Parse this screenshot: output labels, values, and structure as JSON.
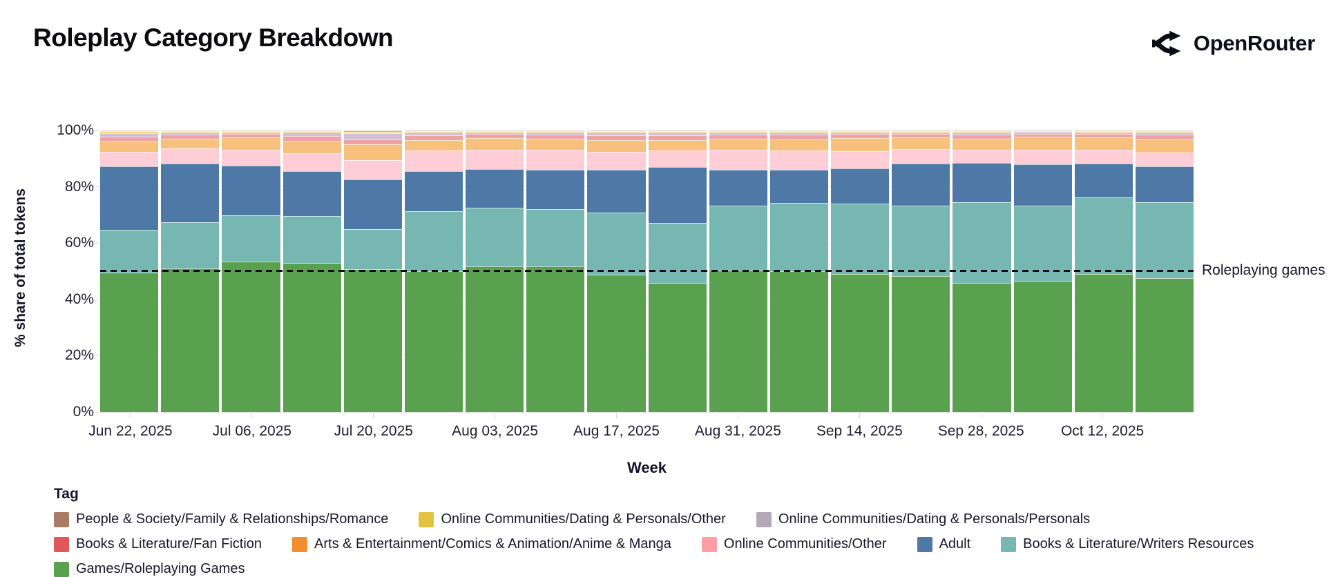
{
  "header": {
    "title": "Roleplay Category Breakdown",
    "brand": "OpenRouter"
  },
  "chart_data": {
    "type": "bar",
    "stacked": true,
    "orientation": "vertical",
    "title": "Roleplay Category Breakdown",
    "xlabel": "Week",
    "ylabel": "% share of total tokens",
    "ylim": [
      0,
      100
    ],
    "ytick_labels": [
      "0%",
      "20%",
      "40%",
      "60%",
      "80%",
      "100%"
    ],
    "xtick_labels": [
      "Jun 22, 2025",
      "Jul 06, 2025",
      "Jul 20, 2025",
      "Aug 03, 2025",
      "Aug 17, 2025",
      "Aug 31, 2025",
      "Sep 14, 2025",
      "Sep 28, 2025",
      "Oct 12, 2025"
    ],
    "xtick_every": 2,
    "categories": [
      "Jun 22, 2025",
      "Jun 29, 2025",
      "Jul 06, 2025",
      "Jul 13, 2025",
      "Jul 20, 2025",
      "Jul 27, 2025",
      "Aug 03, 2025",
      "Aug 10, 2025",
      "Aug 17, 2025",
      "Aug 24, 2025",
      "Aug 31, 2025",
      "Sep 07, 2025",
      "Sep 14, 2025",
      "Sep 21, 2025",
      "Sep 28, 2025",
      "Oct 05, 2025",
      "Oct 12, 2025",
      "Oct 19, 2025"
    ],
    "series": [
      {
        "name": "Games/Roleplaying Games",
        "band_color": "#59a14f",
        "values": [
          49.5,
          51.0,
          53.4,
          53.0,
          50.7,
          50.1,
          51.6,
          51.7,
          48.9,
          45.8,
          50.3,
          49.9,
          49.1,
          48.4,
          45.8,
          46.5,
          49.1,
          47.6
        ]
      },
      {
        "name": "Books & Literature/Writers Resources",
        "band_color": "#76b7b2",
        "values": [
          15.3,
          16.5,
          16.5,
          16.7,
          14.3,
          21.2,
          21.0,
          20.4,
          21.9,
          21.4,
          23.1,
          24.4,
          24.9,
          25.0,
          28.6,
          26.9,
          27.1,
          27.0
        ]
      },
      {
        "name": "Adult",
        "band_color": "#4e79a7",
        "values": [
          22.4,
          20.7,
          17.6,
          15.8,
          17.6,
          14.2,
          13.7,
          13.9,
          15.2,
          19.9,
          12.6,
          11.7,
          12.5,
          14.8,
          14.1,
          14.5,
          12.0,
          12.7
        ]
      },
      {
        "name": "Online Communities/Other",
        "band_color": "#ffcdd5",
        "values": [
          5.2,
          5.4,
          5.6,
          6.3,
          6.9,
          7.3,
          6.9,
          7.1,
          6.4,
          5.7,
          7.1,
          6.8,
          6.1,
          5.2,
          4.7,
          5.2,
          4.9,
          4.9
        ]
      },
      {
        "name": "Arts & Entertainment/Comics & Animation/Anime & Manga",
        "band_color": "#f7c07c",
        "values": [
          3.7,
          3.5,
          4.4,
          4.3,
          5.5,
          3.7,
          4.1,
          4.0,
          4.1,
          3.9,
          4.0,
          4.1,
          4.7,
          4.1,
          3.9,
          4.6,
          4.4,
          4.5
        ]
      },
      {
        "name": "Books & Literature/Fan Fiction",
        "band_color": "#eda3a6",
        "values": [
          1.6,
          1.5,
          1.3,
          1.9,
          1.8,
          1.7,
          1.4,
          1.5,
          1.9,
          1.7,
          1.5,
          1.6,
          1.4,
          1.3,
          1.5,
          1.2,
          1.3,
          1.8
        ]
      },
      {
        "name": "Online Communities/Dating & Personals/Personals",
        "band_color": "#cfc0d8",
        "pattern": "dotted",
        "values": [
          1.3,
          0.7,
          0.5,
          1.2,
          2.2,
          1.0,
          0.6,
          0.7,
          0.8,
          0.8,
          0.6,
          0.7,
          0.6,
          0.6,
          0.7,
          0.5,
          0.6,
          0.8
        ]
      },
      {
        "name": "Online Communities/Dating & Personals/Other",
        "band_color": "#f2d878",
        "values": [
          0.7,
          0.5,
          0.5,
          0.5,
          0.6,
          0.5,
          0.5,
          0.5,
          0.5,
          0.5,
          0.5,
          0.5,
          0.5,
          0.4,
          0.5,
          0.4,
          0.4,
          0.5
        ]
      },
      {
        "name": "People & Society/Family & Relationships/Romance",
        "band_color": "#cbb59b",
        "values": [
          0.3,
          0.2,
          0.2,
          0.3,
          0.4,
          0.3,
          0.2,
          0.2,
          0.3,
          0.3,
          0.3,
          0.3,
          0.2,
          0.2,
          0.2,
          0.2,
          0.2,
          0.2
        ]
      }
    ],
    "annotation": {
      "label": "Roleplaying games",
      "y": 50,
      "line_style": "dashed",
      "line_color": "#0e0e14"
    },
    "legend": {
      "title": "Tag",
      "position": "bottom",
      "entries": [
        {
          "label": "People & Society/Family & Relationships/Romance",
          "color": "#a97c64"
        },
        {
          "label": "Online Communities/Dating & Personals/Other",
          "color": "#e2c33f"
        },
        {
          "label": "Online Communities/Dating & Personals/Personals",
          "color": "#b3a8b3",
          "pattern": "dotted"
        },
        {
          "label": "Books & Literature/Fan Fiction",
          "color": "#e15759"
        },
        {
          "label": "Arts & Entertainment/Comics & Animation/Anime & Manga",
          "color": "#f28e2b"
        },
        {
          "label": "Online Communities/Other",
          "color": "#ff9da7"
        },
        {
          "label": "Adult",
          "color": "#4e79a7"
        },
        {
          "label": "Books & Literature/Writers Resources",
          "color": "#76b7b2"
        },
        {
          "label": "Games/Roleplaying Games",
          "color": "#59a14f"
        }
      ]
    },
    "grid": "faint-horizontal",
    "legend_note": "bars stacked bottom-to-top in series order"
  }
}
